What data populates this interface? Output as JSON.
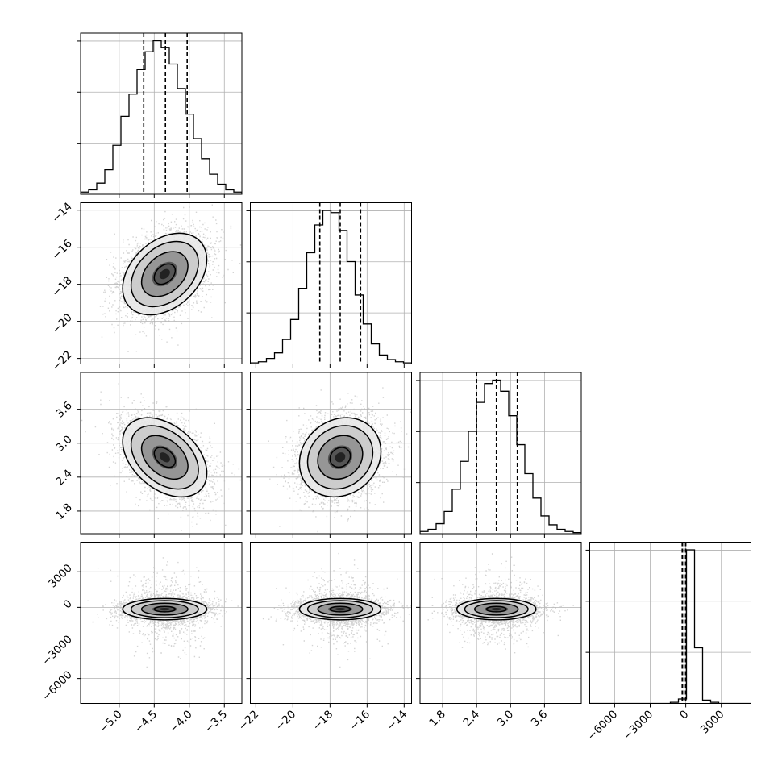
{
  "chart_data": {
    "type": "corner",
    "title": "",
    "grid": true,
    "colors": {
      "frame": "#000000",
      "grid": "#b0b0b0",
      "hist": "#000000",
      "quantile": "#000000",
      "points": "#bdbdbd",
      "density": "#000000"
    },
    "params": [
      {
        "name": "",
        "lim": [
          -5.55,
          -3.25
        ],
        "ticks": [
          "-5.0",
          "-4.5",
          "-4.0",
          "-3.5"
        ],
        "tick_values": [
          -5.0,
          -4.5,
          -4.0,
          -3.5
        ],
        "mean": -4.35,
        "sd": 0.3,
        "quantiles": [
          -4.65,
          -4.34,
          -4.03
        ]
      },
      {
        "name": "",
        "lim": [
          -22.3,
          -13.6
        ],
        "ticks": [
          "-22",
          "-20",
          "-18",
          "-16",
          "-14"
        ],
        "tick_values": [
          -22,
          -20,
          -18,
          -16,
          -14
        ],
        "mean": -17.45,
        "sd": 1.1,
        "quantiles": [
          -18.55,
          -17.45,
          -16.35
        ]
      },
      {
        "name": "",
        "lim": [
          1.4,
          4.25
        ],
        "ticks": [
          "1.8",
          "2.4",
          "3.0",
          "3.6"
        ],
        "tick_values": [
          1.8,
          2.4,
          3.0,
          3.6
        ],
        "mean": 2.75,
        "sd": 0.35,
        "quantiles": [
          2.4,
          2.75,
          3.12
        ]
      },
      {
        "name": "",
        "lim": [
          -8100,
          5500
        ],
        "ticks": [
          "-6000",
          "-3000",
          "0",
          "3000"
        ],
        "tick_values": [
          -6000,
          -3000,
          0,
          3000
        ],
        "mean": -150,
        "sd": 450,
        "quantiles": [
          -300,
          -150,
          0
        ]
      }
    ],
    "correlations": [
      [
        1,
        0.35,
        -0.4,
        0
      ],
      [
        0.35,
        1,
        0.15,
        0
      ],
      [
        -0.4,
        0.15,
        1,
        0
      ],
      [
        0,
        0,
        0,
        1
      ]
    ],
    "hist_bins": 20,
    "diagonal_hists": [
      {
        "bins": 20,
        "counts": [
          2,
          4,
          10,
          22,
          44,
          70,
          90,
          112,
          128,
          138,
          132,
          117,
          95,
          72,
          50,
          32,
          18,
          9,
          4,
          2
        ]
      },
      {
        "bins": 20,
        "counts": [
          1,
          2,
          5,
          10,
          22,
          40,
          68,
          100,
          125,
          138,
          136,
          120,
          92,
          62,
          36,
          18,
          8,
          4,
          2,
          1
        ]
      },
      {
        "bins": 20,
        "counts": [
          2,
          4,
          9,
          20,
          40,
          65,
          92,
          118,
          135,
          138,
          128,
          106,
          80,
          54,
          32,
          16,
          8,
          4,
          2,
          1
        ]
      },
      {
        "bins": 20,
        "counts": [
          0,
          0,
          0,
          0,
          0,
          0,
          0,
          0,
          0,
          0,
          1,
          4,
          138,
          50,
          3,
          1,
          0,
          0,
          0,
          0
        ]
      }
    ]
  }
}
